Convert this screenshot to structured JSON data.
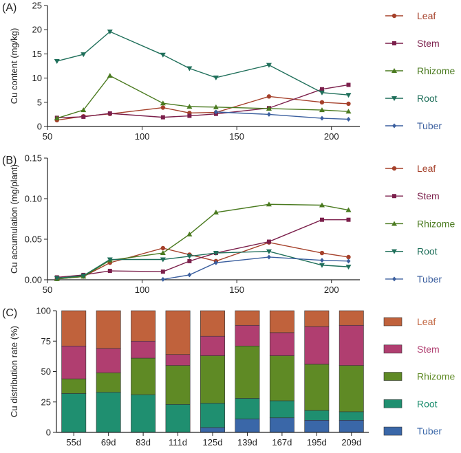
{
  "chart_data": [
    {
      "panel": "(A)",
      "type": "line",
      "ylabel": "Cu content (mg/kg)",
      "xlabel": "",
      "xlim": [
        50,
        215
      ],
      "ylim": [
        0,
        25
      ],
      "xticks": [
        "50",
        "100",
        "150",
        "200"
      ],
      "yticks": [
        "0",
        "5",
        "10",
        "15",
        "20",
        "25"
      ],
      "grid": false,
      "legend_position": "right",
      "series": [
        {
          "name": "Leaf",
          "marker": "circle",
          "color": "#a5402a",
          "x": [
            55,
            69,
            83,
            111,
            125,
            139,
            167,
            195,
            209
          ],
          "y": [
            1.3,
            2.1,
            2.6,
            3.9,
            2.8,
            2.9,
            6.2,
            5.0,
            4.7
          ]
        },
        {
          "name": "Stem",
          "marker": "square",
          "color": "#7b1f4b",
          "x": [
            55,
            69,
            83,
            111,
            125,
            139,
            167,
            195,
            209
          ],
          "y": [
            1.8,
            2.0,
            2.7,
            1.9,
            2.2,
            2.6,
            3.8,
            7.7,
            8.6
          ]
        },
        {
          "name": "Rhizome",
          "marker": "triangle-up",
          "color": "#4a7a1f",
          "x": [
            55,
            69,
            83,
            111,
            125,
            139,
            167,
            195,
            209
          ],
          "y": [
            1.7,
            3.4,
            10.5,
            4.8,
            4.1,
            4.0,
            3.7,
            3.4,
            3.1
          ]
        },
        {
          "name": "Root",
          "marker": "triangle-down",
          "color": "#1f6f5a",
          "x": [
            55,
            69,
            83,
            111,
            125,
            139,
            167,
            195,
            209
          ],
          "y": [
            13.5,
            14.9,
            19.6,
            14.8,
            12.0,
            10.1,
            12.7,
            7.0,
            6.5
          ]
        },
        {
          "name": "Tuber",
          "marker": "diamond",
          "color": "#3a5e9e",
          "x": [
            139,
            167,
            195,
            209
          ],
          "y": [
            3.0,
            2.5,
            1.7,
            1.5
          ]
        }
      ]
    },
    {
      "panel": "(B)",
      "type": "line",
      "ylabel": "Cu accumulation (mg/plant)",
      "xlabel": "",
      "xlim": [
        50,
        215
      ],
      "ylim": [
        0,
        0.15
      ],
      "xticks": [
        "50",
        "100",
        "150",
        "200"
      ],
      "yticks": [
        "0.00",
        "0.05",
        "0.10",
        "0.15"
      ],
      "grid": false,
      "legend_position": "right",
      "series": [
        {
          "name": "Leaf",
          "marker": "circle",
          "color": "#a5402a",
          "x": [
            55,
            69,
            83,
            111,
            125,
            139,
            167,
            195,
            209
          ],
          "y": [
            0.001,
            0.004,
            0.021,
            0.039,
            0.031,
            0.023,
            0.046,
            0.033,
            0.028
          ]
        },
        {
          "name": "Stem",
          "marker": "square",
          "color": "#7b1f4b",
          "x": [
            55,
            69,
            83,
            111,
            125,
            139,
            167,
            195,
            209
          ],
          "y": [
            0.003,
            0.006,
            0.011,
            0.01,
            0.023,
            0.033,
            0.047,
            0.074,
            0.074
          ]
        },
        {
          "name": "Rhizome",
          "marker": "triangle-up",
          "color": "#4a7a1f",
          "x": [
            55,
            69,
            83,
            111,
            125,
            139,
            167,
            195,
            209
          ],
          "y": [
            0.001,
            0.004,
            0.024,
            0.033,
            0.056,
            0.083,
            0.093,
            0.092,
            0.086
          ]
        },
        {
          "name": "Root",
          "marker": "triangle-down",
          "color": "#1f6f5a",
          "x": [
            55,
            69,
            83,
            111,
            125,
            139,
            167,
            195,
            209
          ],
          "y": [
            0.002,
            0.005,
            0.025,
            0.025,
            0.029,
            0.033,
            0.035,
            0.018,
            0.016
          ]
        },
        {
          "name": "Tuber",
          "marker": "diamond",
          "color": "#3a5e9e",
          "x": [
            111,
            125,
            139,
            167,
            195,
            209
          ],
          "y": [
            0.0005,
            0.006,
            0.021,
            0.028,
            0.024,
            0.023
          ]
        }
      ]
    },
    {
      "panel": "(C)",
      "type": "bar",
      "stacked": true,
      "ylabel": "Cu distribution rate (%)",
      "xlabel": "",
      "ylim": [
        0,
        100
      ],
      "yticks": [
        "0",
        "25",
        "50",
        "75",
        "100"
      ],
      "categories": [
        "55d",
        "69d",
        "83d",
        "111d",
        "125d",
        "139d",
        "167d",
        "195d",
        "209d"
      ],
      "legend_position": "right",
      "series": [
        {
          "name": "Leaf",
          "color": "#c0623c",
          "values": [
            29,
            31,
            25,
            36,
            21,
            12,
            18,
            13,
            12
          ]
        },
        {
          "name": "Stem",
          "color": "#b03e70",
          "values": [
            27,
            20,
            14,
            9,
            16,
            17,
            19,
            31,
            33
          ]
        },
        {
          "name": "Rhizome",
          "color": "#5f8a25",
          "values": [
            12,
            16,
            30,
            32,
            39,
            43,
            37,
            38,
            38
          ]
        },
        {
          "name": "Root",
          "color": "#1f8f70",
          "values": [
            32,
            33,
            31,
            23,
            20,
            17,
            14,
            8,
            7
          ]
        },
        {
          "name": "Tuber",
          "color": "#3a67a8",
          "values": [
            0,
            0,
            0,
            0,
            4,
            11,
            12,
            10,
            10
          ]
        }
      ]
    }
  ]
}
